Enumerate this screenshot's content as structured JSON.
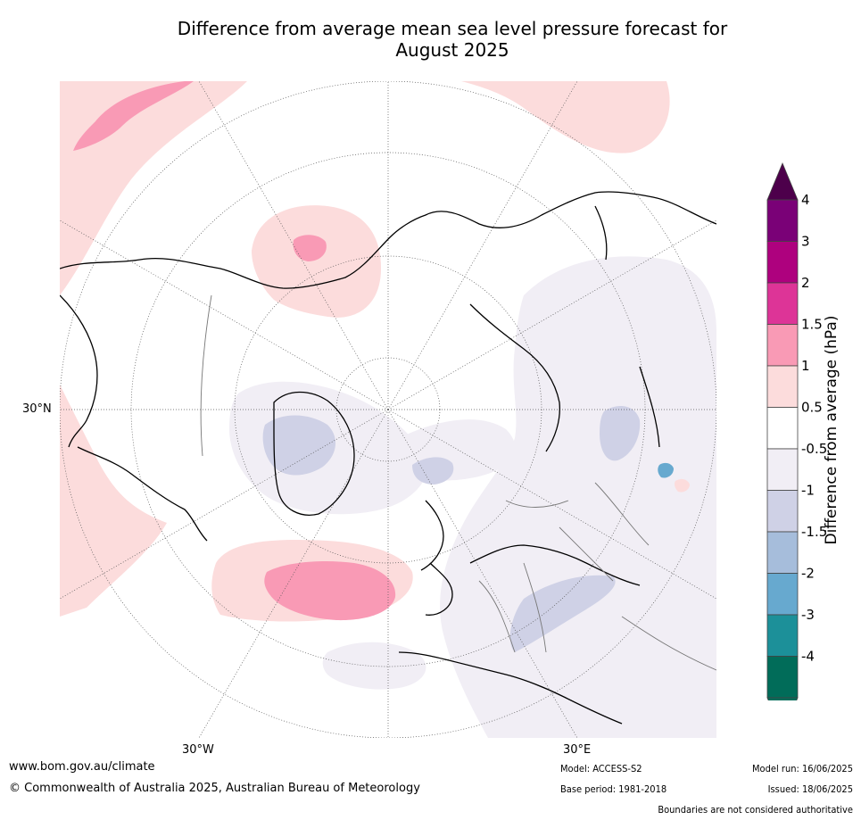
{
  "title_line1": "Difference from average mean sea level pressure forecast for",
  "title_line2": "August 2025",
  "map": {
    "projection": "north-polar-stereographic",
    "lat_label": "30°N",
    "lon_labels": [
      "30°W",
      "30°E"
    ],
    "anomaly_regions": [
      {
        "name": "north-atlantic-high",
        "category": "1 to 1.5",
        "color": "#f99ab5"
      },
      {
        "name": "north-atlantic-high-outer",
        "category": "0.5 to 1",
        "color": "#fcdcdc"
      },
      {
        "name": "bering-high",
        "category": "1 to 1.5",
        "color": "#f99ab5"
      },
      {
        "name": "north-pacific-high",
        "category": "0.5 to 1",
        "color": "#fcdcdc"
      },
      {
        "name": "greenland-low",
        "category": "-1.5 to -1",
        "color": "#cfd1e6"
      },
      {
        "name": "eurasia-low",
        "category": "-1 to -0.5",
        "color": "#f1eef5"
      }
    ]
  },
  "colorbar": {
    "title": "Difference from average (hPa)",
    "labels": [
      "4",
      "3",
      "2",
      "1.5",
      "1",
      "0.5",
      "-0.5",
      "-1",
      "-1.5",
      "-2",
      "-3",
      "-4"
    ],
    "colors": [
      "#7a0177",
      "#ae017e",
      "#dd3497",
      "#f99ab5",
      "#fcdcdc",
      "#ffffff",
      "#f1eef5",
      "#cfd1e6",
      "#a6bddb",
      "#67a9cf",
      "#1c9099",
      "#016c59"
    ],
    "extend_top_color": "#4d004b",
    "extend_bottom_color": "#016c59"
  },
  "footer": {
    "website": "www.bom.gov.au/climate",
    "copyright": "© Commonwealth of Australia 2025, Australian Bureau of Meteorology",
    "model": "Model: ACCESS-S2",
    "base_period": "Base period: 1981-2018",
    "model_run": "Model run: 16/06/2025",
    "issued": "Issued: 18/06/2025",
    "disclaimer": "Boundaries are not considered authoritative"
  }
}
